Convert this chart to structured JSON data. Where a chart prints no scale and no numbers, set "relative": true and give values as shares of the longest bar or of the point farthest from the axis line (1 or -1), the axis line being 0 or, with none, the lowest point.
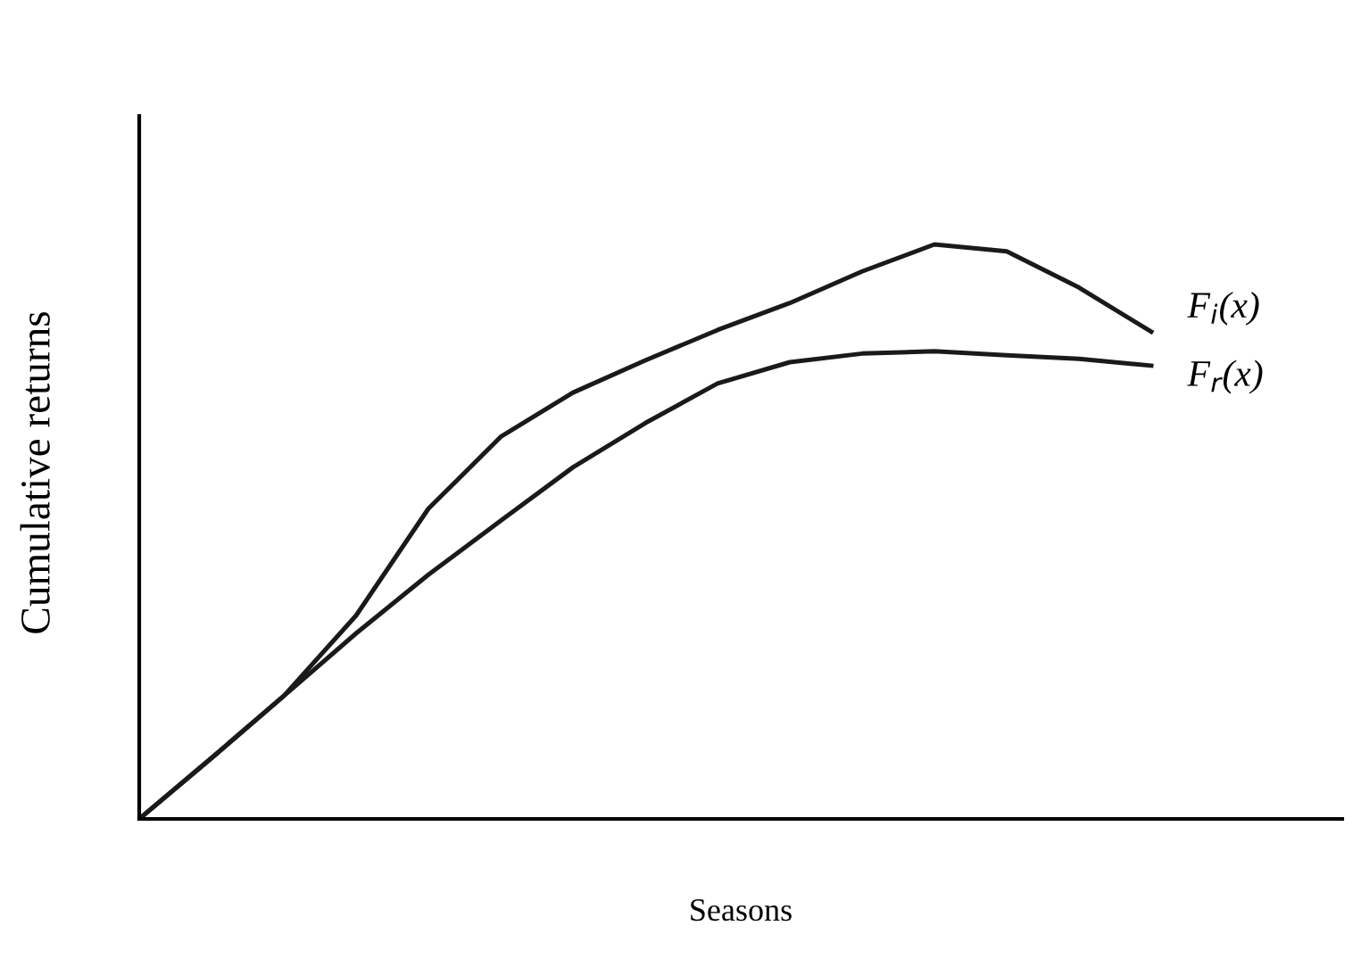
{
  "chart_data": {
    "type": "line",
    "relative": true,
    "xlabel": "Seasons",
    "ylabel": "Cumulative returns",
    "legend": false,
    "marker": "none",
    "line_style": "solid",
    "categories": [
      null,
      null,
      null,
      null,
      null,
      null,
      null,
      null,
      null,
      null,
      null,
      null,
      null,
      null,
      null
    ],
    "series": [
      {
        "name": "F$_{i}$(x)",
        "color": "#1a1a1a",
        "values": [
          0,
          0.106,
          0.214,
          0.354,
          0.54,
          0.665,
          0.742,
          0.798,
          0.851,
          0.898,
          0.953,
          1.0,
          0.988,
          0.925,
          0.848
        ]
      },
      {
        "name": "F$_{r}$(x)",
        "color": "#1a1a1a",
        "values": [
          0,
          0.106,
          0.214,
          0.323,
          0.425,
          0.519,
          0.612,
          0.689,
          0.758,
          0.795,
          0.81,
          0.814,
          0.807,
          0.801,
          0.789
        ]
      }
    ]
  }
}
